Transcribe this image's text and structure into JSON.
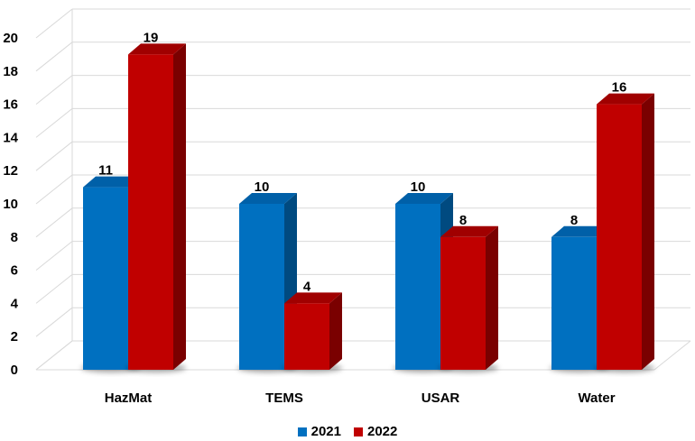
{
  "chart_data": {
    "type": "bar",
    "categories": [
      "HazMat",
      "TEMS",
      "USAR",
      "Water"
    ],
    "series": [
      {
        "name": "2021",
        "values": [
          11,
          10,
          10,
          8
        ],
        "color": "#0070C0",
        "side_color": "#004A80",
        "top_color": "#0060A8"
      },
      {
        "name": "2022",
        "values": [
          19,
          4,
          8,
          16
        ],
        "color": "#C00000",
        "side_color": "#7A0000",
        "top_color": "#A00000"
      }
    ],
    "ylim": [
      0,
      20
    ],
    "yticks": [
      "0",
      "2",
      "4",
      "6",
      "8",
      "10",
      "12",
      "14",
      "16",
      "18",
      "20"
    ],
    "grid": true,
    "legend_position": "bottom"
  }
}
